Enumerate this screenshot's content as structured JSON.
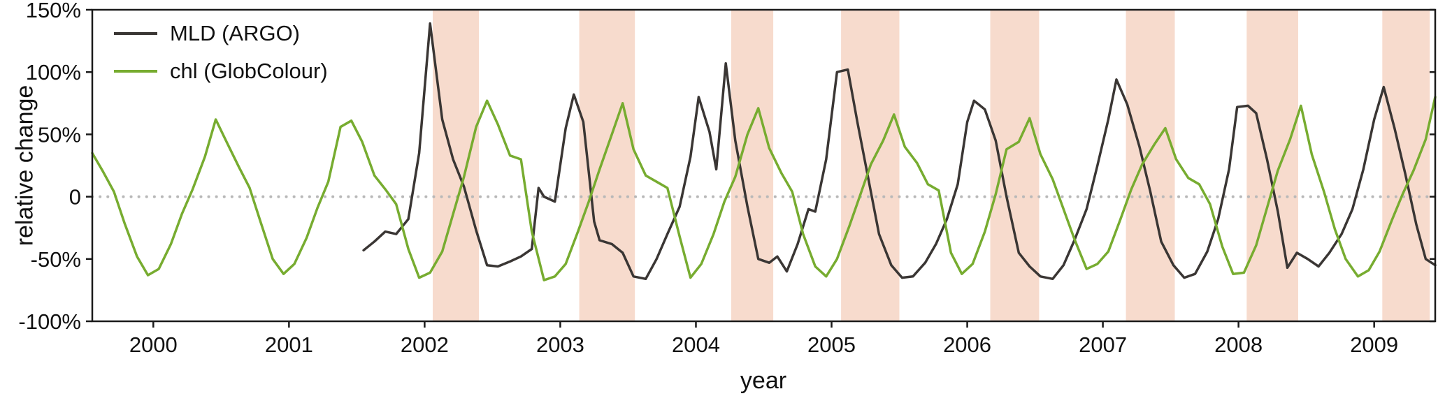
{
  "chart_data": {
    "type": "line",
    "title": "",
    "xlabel": "year",
    "ylabel": "relative change",
    "xlim": [
      1999.55,
      2009.45
    ],
    "ylim": [
      -100,
      150
    ],
    "grid": false,
    "legend_position": "top-left",
    "x_ticks": [
      2000,
      2001,
      2002,
      2003,
      2004,
      2005,
      2006,
      2007,
      2008,
      2009
    ],
    "x_tick_labels": [
      "2000",
      "2001",
      "2002",
      "2003",
      "2004",
      "2005",
      "2006",
      "2007",
      "2008",
      "2009"
    ],
    "y_ticks": [
      -100,
      -50,
      0,
      50,
      100,
      150
    ],
    "y_tick_labels": [
      "-100%",
      "-50%",
      "0",
      "50%",
      "100%",
      "150%"
    ],
    "zero_line": {
      "y": 0,
      "style": "dotted",
      "color": "#b8b8b8"
    },
    "shaded_bands": {
      "color": "#f7dbcd",
      "ranges": [
        [
          2002.06,
          2002.4
        ],
        [
          2003.14,
          2003.55
        ],
        [
          2004.26,
          2004.57
        ],
        [
          2005.07,
          2005.5
        ],
        [
          2006.17,
          2006.53
        ],
        [
          2007.17,
          2007.53
        ],
        [
          2008.06,
          2008.44
        ],
        [
          2009.06,
          2009.41
        ]
      ]
    },
    "series": [
      {
        "name": "MLD (ARGO)",
        "color": "#3a3634",
        "points": [
          [
            2001.55,
            -43
          ],
          [
            2001.63,
            -36
          ],
          [
            2001.71,
            -28
          ],
          [
            2001.79,
            -30
          ],
          [
            2001.88,
            -18
          ],
          [
            2001.96,
            35
          ],
          [
            2002.04,
            139
          ],
          [
            2002.13,
            62
          ],
          [
            2002.21,
            30
          ],
          [
            2002.29,
            8
          ],
          [
            2002.38,
            -27
          ],
          [
            2002.46,
            -55
          ],
          [
            2002.54,
            -56
          ],
          [
            2002.63,
            -52
          ],
          [
            2002.71,
            -48
          ],
          [
            2002.79,
            -42
          ],
          [
            2002.84,
            7
          ],
          [
            2002.88,
            0
          ],
          [
            2002.96,
            -4
          ],
          [
            2003.04,
            55
          ],
          [
            2003.1,
            82
          ],
          [
            2003.17,
            60
          ],
          [
            2003.25,
            -20
          ],
          [
            2003.29,
            -35
          ],
          [
            2003.38,
            -38
          ],
          [
            2003.46,
            -45
          ],
          [
            2003.54,
            -64
          ],
          [
            2003.63,
            -66
          ],
          [
            2003.71,
            -50
          ],
          [
            2003.79,
            -30
          ],
          [
            2003.88,
            -8
          ],
          [
            2003.96,
            32
          ],
          [
            2004.02,
            80
          ],
          [
            2004.1,
            52
          ],
          [
            2004.15,
            22
          ],
          [
            2004.22,
            107
          ],
          [
            2004.29,
            45
          ],
          [
            2004.38,
            -8
          ],
          [
            2004.46,
            -50
          ],
          [
            2004.54,
            -53
          ],
          [
            2004.6,
            -48
          ],
          [
            2004.67,
            -60
          ],
          [
            2004.75,
            -38
          ],
          [
            2004.83,
            -10
          ],
          [
            2004.88,
            -12
          ],
          [
            2004.96,
            30
          ],
          [
            2005.04,
            100
          ],
          [
            2005.12,
            102
          ],
          [
            2005.19,
            60
          ],
          [
            2005.27,
            15
          ],
          [
            2005.35,
            -30
          ],
          [
            2005.44,
            -55
          ],
          [
            2005.52,
            -65
          ],
          [
            2005.6,
            -64
          ],
          [
            2005.69,
            -53
          ],
          [
            2005.77,
            -38
          ],
          [
            2005.85,
            -18
          ],
          [
            2005.93,
            10
          ],
          [
            2006.0,
            60
          ],
          [
            2006.05,
            77
          ],
          [
            2006.13,
            70
          ],
          [
            2006.21,
            45
          ],
          [
            2006.29,
            0
          ],
          [
            2006.38,
            -45
          ],
          [
            2006.46,
            -56
          ],
          [
            2006.54,
            -64
          ],
          [
            2006.63,
            -66
          ],
          [
            2006.71,
            -55
          ],
          [
            2006.79,
            -35
          ],
          [
            2006.88,
            -10
          ],
          [
            2006.96,
            25
          ],
          [
            2007.04,
            62
          ],
          [
            2007.1,
            94
          ],
          [
            2007.18,
            74
          ],
          [
            2007.27,
            40
          ],
          [
            2007.35,
            4
          ],
          [
            2007.43,
            -36
          ],
          [
            2007.52,
            -55
          ],
          [
            2007.6,
            -65
          ],
          [
            2007.68,
            -62
          ],
          [
            2007.77,
            -44
          ],
          [
            2007.85,
            -18
          ],
          [
            2007.93,
            22
          ],
          [
            2007.99,
            72
          ],
          [
            2008.07,
            73
          ],
          [
            2008.13,
            67
          ],
          [
            2008.21,
            30
          ],
          [
            2008.29,
            -12
          ],
          [
            2008.36,
            -57
          ],
          [
            2008.43,
            -45
          ],
          [
            2008.51,
            -50
          ],
          [
            2008.59,
            -56
          ],
          [
            2008.67,
            -45
          ],
          [
            2008.76,
            -30
          ],
          [
            2008.84,
            -10
          ],
          [
            2008.92,
            22
          ],
          [
            2009.0,
            62
          ],
          [
            2009.07,
            88
          ],
          [
            2009.15,
            55
          ],
          [
            2009.23,
            18
          ],
          [
            2009.31,
            -22
          ],
          [
            2009.38,
            -50
          ],
          [
            2009.45,
            -55
          ]
        ]
      },
      {
        "name": "chl (GlobColour)",
        "color": "#77ac30",
        "points": [
          [
            1999.55,
            35
          ],
          [
            1999.63,
            20
          ],
          [
            1999.71,
            4
          ],
          [
            1999.79,
            -22
          ],
          [
            1999.88,
            -48
          ],
          [
            1999.96,
            -63
          ],
          [
            2000.04,
            -58
          ],
          [
            2000.13,
            -38
          ],
          [
            2000.21,
            -14
          ],
          [
            2000.29,
            6
          ],
          [
            2000.38,
            32
          ],
          [
            2000.46,
            62
          ],
          [
            2000.54,
            44
          ],
          [
            2000.63,
            24
          ],
          [
            2000.71,
            7
          ],
          [
            2000.79,
            -20
          ],
          [
            2000.88,
            -50
          ],
          [
            2000.96,
            -62
          ],
          [
            2001.04,
            -54
          ],
          [
            2001.13,
            -33
          ],
          [
            2001.21,
            -9
          ],
          [
            2001.29,
            12
          ],
          [
            2001.38,
            56
          ],
          [
            2001.46,
            61
          ],
          [
            2001.54,
            44
          ],
          [
            2001.63,
            17
          ],
          [
            2001.71,
            6
          ],
          [
            2001.79,
            -6
          ],
          [
            2001.88,
            -42
          ],
          [
            2001.96,
            -65
          ],
          [
            2002.04,
            -61
          ],
          [
            2002.13,
            -44
          ],
          [
            2002.21,
            -14
          ],
          [
            2002.29,
            16
          ],
          [
            2002.38,
            56
          ],
          [
            2002.46,
            77
          ],
          [
            2002.54,
            58
          ],
          [
            2002.63,
            33
          ],
          [
            2002.71,
            30
          ],
          [
            2002.79,
            -28
          ],
          [
            2002.88,
            -67
          ],
          [
            2002.96,
            -64
          ],
          [
            2003.04,
            -54
          ],
          [
            2003.13,
            -28
          ],
          [
            2003.21,
            -4
          ],
          [
            2003.29,
            22
          ],
          [
            2003.38,
            50
          ],
          [
            2003.46,
            75
          ],
          [
            2003.54,
            38
          ],
          [
            2003.63,
            17
          ],
          [
            2003.71,
            12
          ],
          [
            2003.79,
            7
          ],
          [
            2003.88,
            -32
          ],
          [
            2003.96,
            -65
          ],
          [
            2004.04,
            -54
          ],
          [
            2004.13,
            -30
          ],
          [
            2004.21,
            -4
          ],
          [
            2004.29,
            16
          ],
          [
            2004.38,
            50
          ],
          [
            2004.46,
            71
          ],
          [
            2004.54,
            39
          ],
          [
            2004.63,
            19
          ],
          [
            2004.71,
            4
          ],
          [
            2004.79,
            -30
          ],
          [
            2004.88,
            -56
          ],
          [
            2004.96,
            -64
          ],
          [
            2005.04,
            -50
          ],
          [
            2005.13,
            -24
          ],
          [
            2005.21,
            1
          ],
          [
            2005.29,
            26
          ],
          [
            2005.38,
            45
          ],
          [
            2005.46,
            66
          ],
          [
            2005.54,
            40
          ],
          [
            2005.63,
            27
          ],
          [
            2005.71,
            10
          ],
          [
            2005.79,
            5
          ],
          [
            2005.88,
            -45
          ],
          [
            2005.96,
            -62
          ],
          [
            2006.04,
            -54
          ],
          [
            2006.13,
            -28
          ],
          [
            2006.21,
            2
          ],
          [
            2006.29,
            38
          ],
          [
            2006.38,
            44
          ],
          [
            2006.46,
            63
          ],
          [
            2006.54,
            34
          ],
          [
            2006.63,
            14
          ],
          [
            2006.71,
            -10
          ],
          [
            2006.79,
            -34
          ],
          [
            2006.88,
            -58
          ],
          [
            2006.96,
            -54
          ],
          [
            2007.04,
            -44
          ],
          [
            2007.13,
            -18
          ],
          [
            2007.21,
            6
          ],
          [
            2007.29,
            26
          ],
          [
            2007.38,
            42
          ],
          [
            2007.46,
            55
          ],
          [
            2007.54,
            30
          ],
          [
            2007.63,
            15
          ],
          [
            2007.71,
            10
          ],
          [
            2007.79,
            -6
          ],
          [
            2007.88,
            -40
          ],
          [
            2007.96,
            -62
          ],
          [
            2008.04,
            -61
          ],
          [
            2008.13,
            -39
          ],
          [
            2008.21,
            -9
          ],
          [
            2008.29,
            21
          ],
          [
            2008.38,
            46
          ],
          [
            2008.46,
            73
          ],
          [
            2008.54,
            34
          ],
          [
            2008.63,
            4
          ],
          [
            2008.71,
            -26
          ],
          [
            2008.79,
            -50
          ],
          [
            2008.88,
            -64
          ],
          [
            2008.96,
            -59
          ],
          [
            2009.04,
            -44
          ],
          [
            2009.13,
            -19
          ],
          [
            2009.21,
            2
          ],
          [
            2009.29,
            21
          ],
          [
            2009.38,
            46
          ],
          [
            2009.45,
            80
          ]
        ]
      }
    ]
  }
}
